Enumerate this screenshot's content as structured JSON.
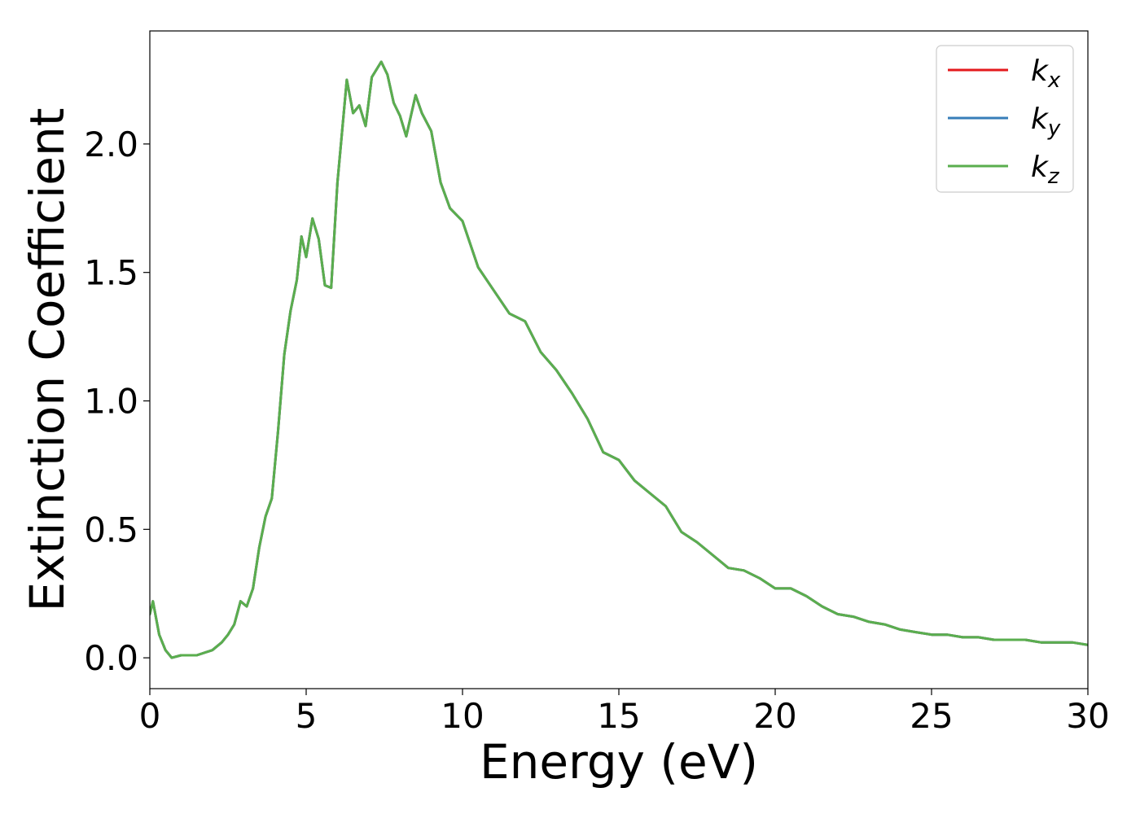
{
  "chart_data": {
    "type": "line",
    "xlabel": "Energy (eV)",
    "ylabel": "Extinction Coefficient",
    "xlim": [
      0,
      30
    ],
    "ylim": [
      -0.12,
      2.44
    ],
    "xticks": [
      0,
      5,
      10,
      15,
      20,
      25,
      30
    ],
    "xtick_labels": [
      "0",
      "5",
      "10",
      "15",
      "20",
      "25",
      "30"
    ],
    "yticks": [
      0.0,
      0.5,
      1.0,
      1.5,
      2.0
    ],
    "ytick_labels": [
      "0.0",
      "0.5",
      "1.0",
      "1.5",
      "2.0"
    ],
    "grid": false,
    "legend_position": "top-right",
    "x": [
      0,
      0.1,
      0.3,
      0.5,
      0.7,
      1.0,
      1.5,
      2.0,
      2.3,
      2.5,
      2.7,
      2.9,
      3.1,
      3.3,
      3.5,
      3.7,
      3.9,
      4.1,
      4.3,
      4.5,
      4.7,
      4.85,
      5.0,
      5.2,
      5.4,
      5.6,
      5.8,
      6.0,
      6.3,
      6.5,
      6.7,
      6.9,
      7.1,
      7.4,
      7.6,
      7.8,
      8.0,
      8.2,
      8.5,
      8.7,
      9.0,
      9.3,
      9.6,
      10.0,
      10.5,
      11.0,
      11.5,
      12.0,
      12.5,
      13.0,
      13.5,
      14.0,
      14.5,
      15.0,
      15.5,
      16.0,
      16.5,
      17.0,
      17.5,
      18.0,
      18.5,
      19.0,
      19.5,
      20.0,
      20.5,
      21.0,
      21.5,
      22.0,
      22.5,
      23.0,
      23.5,
      24.0,
      24.5,
      25.0,
      25.5,
      26.0,
      26.5,
      27.0,
      27.5,
      28.0,
      28.5,
      29.0,
      29.5,
      30.0
    ],
    "series": [
      {
        "name": "k_x",
        "label_base": "k",
        "label_sub": "x",
        "color": "#e41a1c",
        "y": [
          0.17,
          0.22,
          0.09,
          0.03,
          0.0,
          0.01,
          0.01,
          0.03,
          0.06,
          0.09,
          0.13,
          0.22,
          0.2,
          0.27,
          0.43,
          0.55,
          0.62,
          0.88,
          1.18,
          1.35,
          1.47,
          1.64,
          1.56,
          1.71,
          1.63,
          1.45,
          1.44,
          1.85,
          2.25,
          2.12,
          2.15,
          2.07,
          2.26,
          2.32,
          2.27,
          2.16,
          2.11,
          2.03,
          2.19,
          2.12,
          2.05,
          1.85,
          1.75,
          1.7,
          1.52,
          1.43,
          1.34,
          1.31,
          1.19,
          1.12,
          1.03,
          0.93,
          0.8,
          0.77,
          0.69,
          0.64,
          0.59,
          0.49,
          0.45,
          0.4,
          0.35,
          0.34,
          0.31,
          0.27,
          0.27,
          0.24,
          0.2,
          0.17,
          0.16,
          0.14,
          0.13,
          0.11,
          0.1,
          0.09,
          0.09,
          0.08,
          0.08,
          0.07,
          0.07,
          0.07,
          0.06,
          0.06,
          0.06,
          0.05
        ]
      },
      {
        "name": "k_y",
        "label_base": "k",
        "label_sub": "y",
        "color": "#377eb8",
        "y": [
          0.17,
          0.22,
          0.09,
          0.03,
          0.0,
          0.01,
          0.01,
          0.03,
          0.06,
          0.09,
          0.13,
          0.22,
          0.2,
          0.27,
          0.43,
          0.55,
          0.62,
          0.88,
          1.18,
          1.35,
          1.47,
          1.64,
          1.56,
          1.71,
          1.63,
          1.45,
          1.44,
          1.85,
          2.25,
          2.12,
          2.15,
          2.07,
          2.26,
          2.32,
          2.27,
          2.16,
          2.11,
          2.03,
          2.19,
          2.12,
          2.05,
          1.85,
          1.75,
          1.7,
          1.52,
          1.43,
          1.34,
          1.31,
          1.19,
          1.12,
          1.03,
          0.93,
          0.8,
          0.77,
          0.69,
          0.64,
          0.59,
          0.49,
          0.45,
          0.4,
          0.35,
          0.34,
          0.31,
          0.27,
          0.27,
          0.24,
          0.2,
          0.17,
          0.16,
          0.14,
          0.13,
          0.11,
          0.1,
          0.09,
          0.09,
          0.08,
          0.08,
          0.07,
          0.07,
          0.07,
          0.06,
          0.06,
          0.06,
          0.05
        ]
      },
      {
        "name": "k_z",
        "label_base": "k",
        "label_sub": "z",
        "color": "#5aae4e",
        "y": [
          0.17,
          0.22,
          0.09,
          0.03,
          0.0,
          0.01,
          0.01,
          0.03,
          0.06,
          0.09,
          0.13,
          0.22,
          0.2,
          0.27,
          0.43,
          0.55,
          0.62,
          0.88,
          1.18,
          1.35,
          1.47,
          1.64,
          1.56,
          1.71,
          1.63,
          1.45,
          1.44,
          1.85,
          2.25,
          2.12,
          2.15,
          2.07,
          2.26,
          2.32,
          2.27,
          2.16,
          2.11,
          2.03,
          2.19,
          2.12,
          2.05,
          1.85,
          1.75,
          1.7,
          1.52,
          1.43,
          1.34,
          1.31,
          1.19,
          1.12,
          1.03,
          0.93,
          0.8,
          0.77,
          0.69,
          0.64,
          0.59,
          0.49,
          0.45,
          0.4,
          0.35,
          0.34,
          0.31,
          0.27,
          0.27,
          0.24,
          0.2,
          0.17,
          0.16,
          0.14,
          0.13,
          0.11,
          0.1,
          0.09,
          0.09,
          0.08,
          0.08,
          0.07,
          0.07,
          0.07,
          0.06,
          0.06,
          0.06,
          0.05
        ]
      }
    ]
  }
}
